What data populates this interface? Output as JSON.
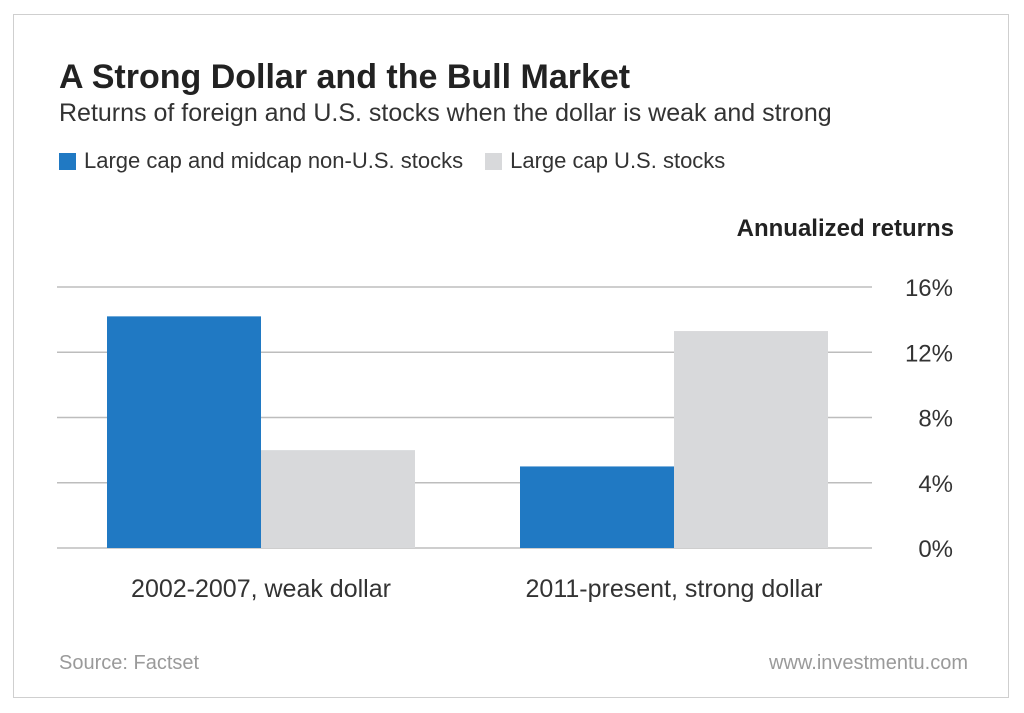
{
  "colors": {
    "blue": "#2079c3",
    "gray": "#d8d9db",
    "grid": "#bdbdbd"
  },
  "footer": {
    "source": "Source: Factset",
    "website": "www.investmentu.com"
  },
  "chart_data": {
    "type": "bar",
    "title": "A Strong Dollar and the Bull Market",
    "subtitle": "Returns of foreign and U.S. stocks when the dollar is weak and strong",
    "ylabel": "Annualized returns",
    "categories": [
      "2002-2007, weak dollar",
      "2011-present, strong dollar"
    ],
    "series": [
      {
        "name": "Large cap and midcap non-U.S. stocks",
        "color": "#2079c3",
        "values": [
          14.2,
          5.0
        ]
      },
      {
        "name": "Large cap U.S. stocks",
        "color": "#d8d9db",
        "values": [
          6.0,
          13.3
        ]
      }
    ],
    "ylim": [
      0,
      16
    ],
    "yticks": [
      0,
      4,
      8,
      12,
      16
    ],
    "ytick_labels": [
      "0%",
      "4%",
      "8%",
      "12%",
      "16%"
    ],
    "grid": true,
    "y_axis_side": "right",
    "legend_position": "top-left"
  }
}
